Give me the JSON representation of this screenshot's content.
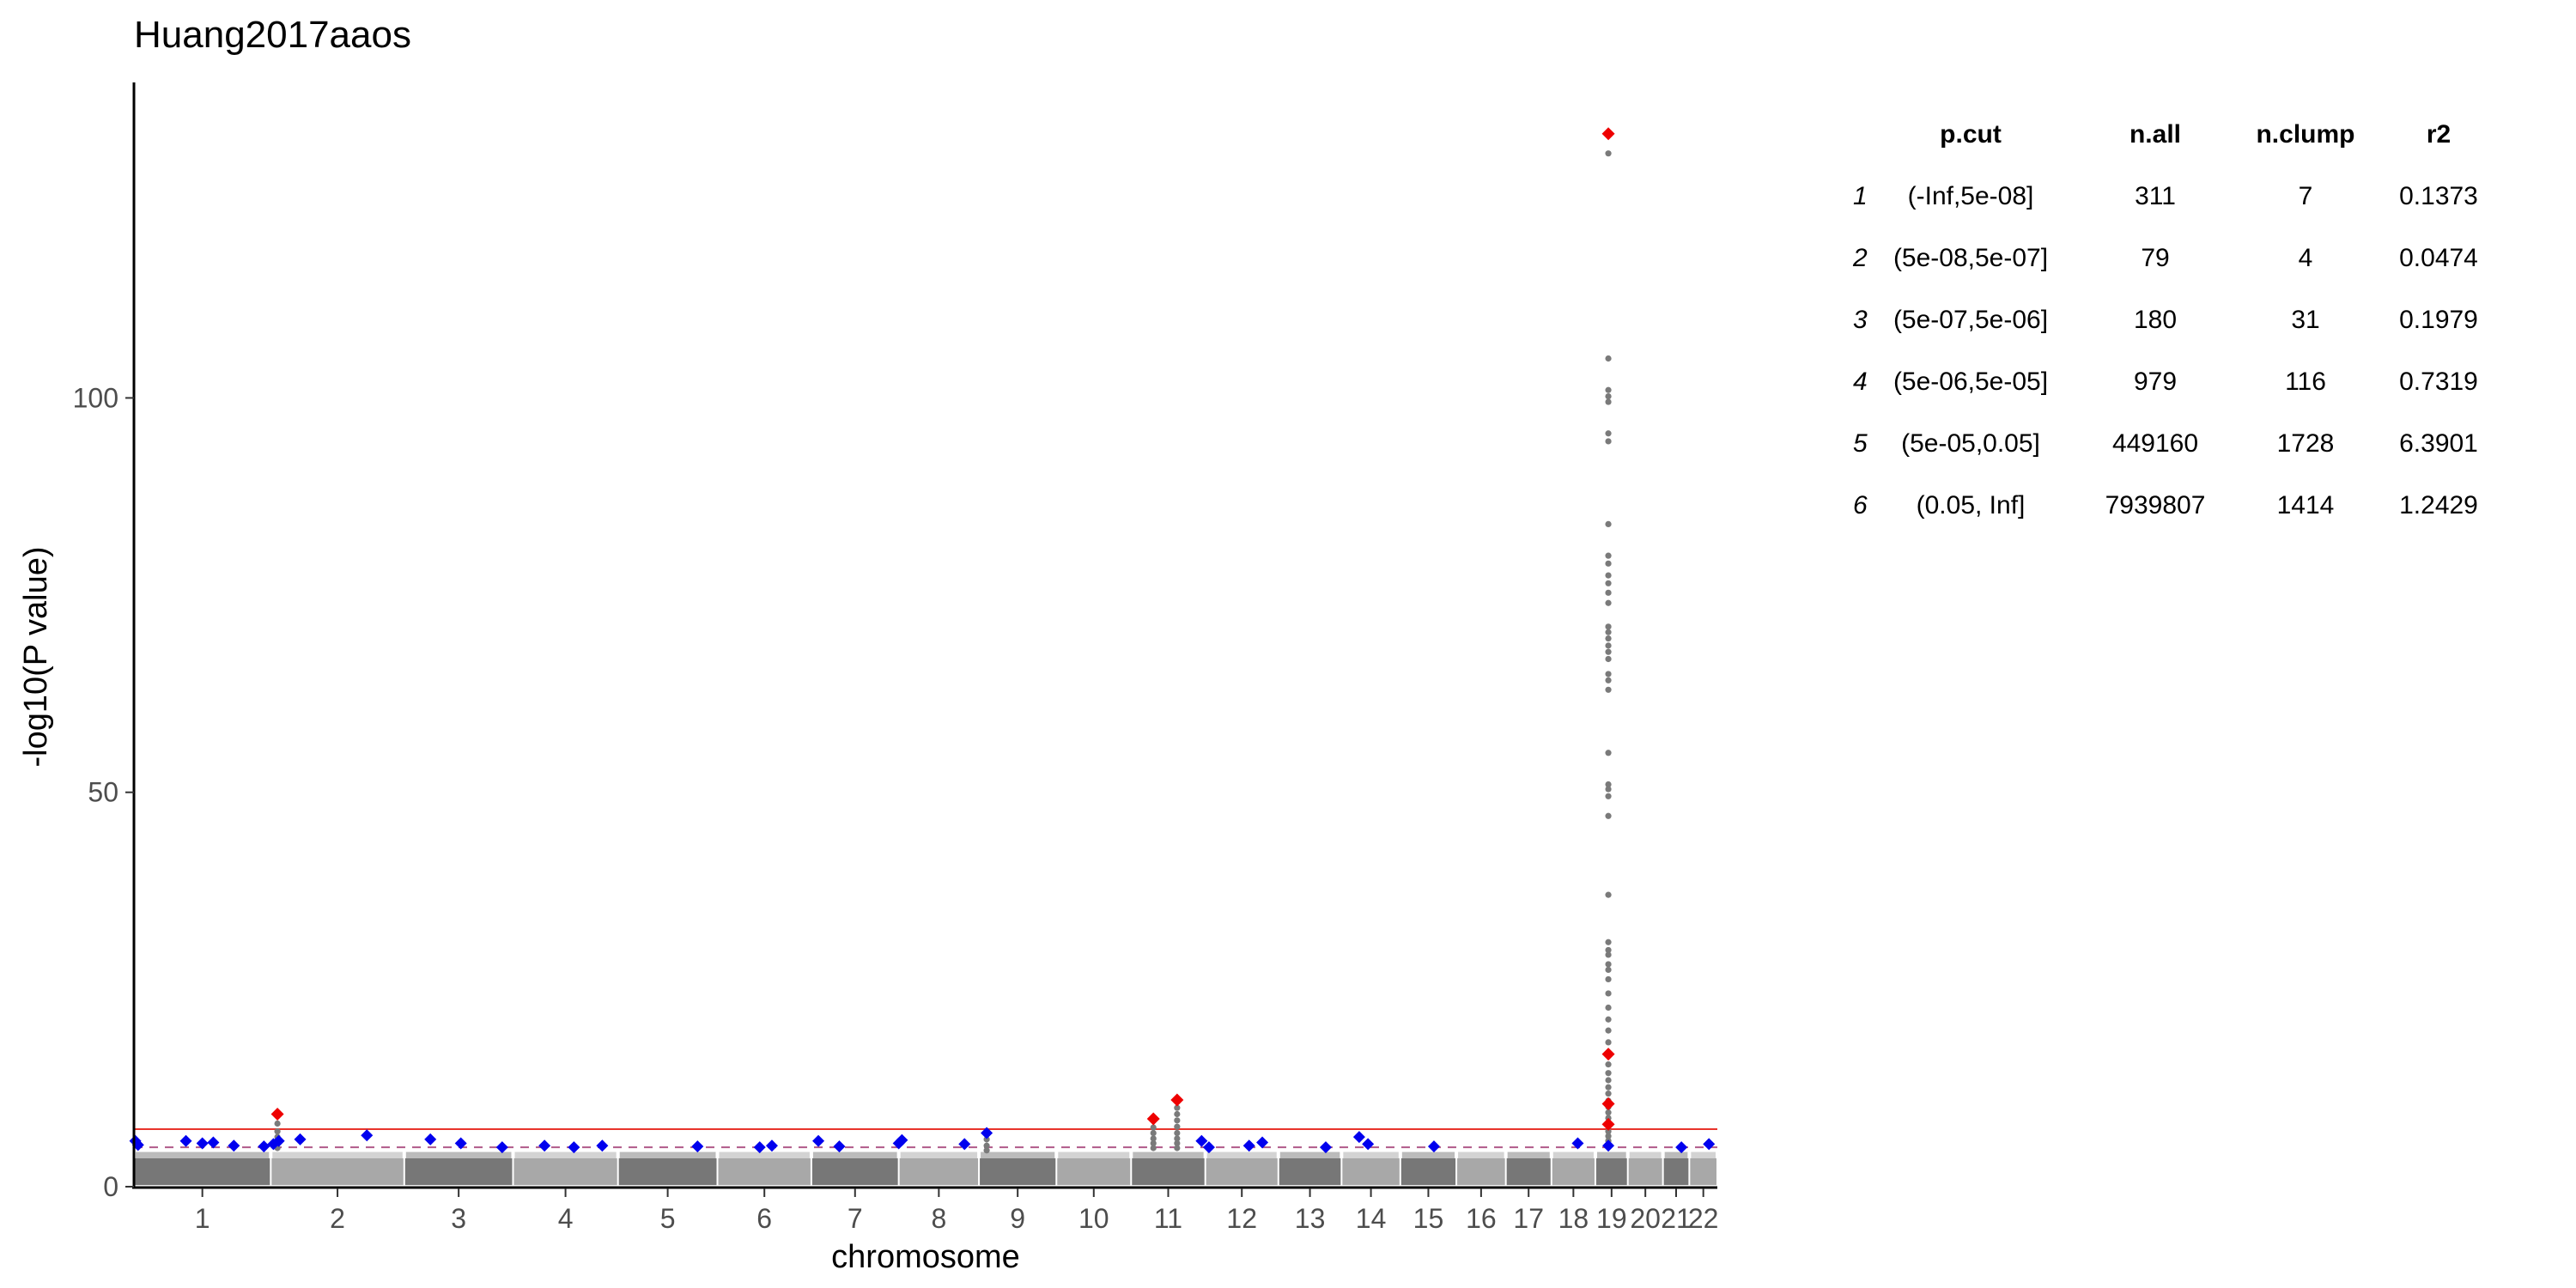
{
  "chart_data": {
    "type": "scatter",
    "title": "Huang2017aaos",
    "xlabel": "chromosome",
    "ylabel": "-log10(P value)",
    "ylim": [
      0,
      140
    ],
    "yticks": [
      0,
      50,
      100
    ],
    "chromosomes": [
      {
        "label": "1",
        "len": 249
      },
      {
        "label": "2",
        "len": 243
      },
      {
        "label": "3",
        "len": 198
      },
      {
        "label": "4",
        "len": 191
      },
      {
        "label": "5",
        "len": 181
      },
      {
        "label": "6",
        "len": 171
      },
      {
        "label": "7",
        "len": 159
      },
      {
        "label": "8",
        "len": 146
      },
      {
        "label": "9",
        "len": 141
      },
      {
        "label": "10",
        "len": 136
      },
      {
        "label": "11",
        "len": 135
      },
      {
        "label": "12",
        "len": 133
      },
      {
        "label": "13",
        "len": 115
      },
      {
        "label": "14",
        "len": 107
      },
      {
        "label": "15",
        "len": 102
      },
      {
        "label": "16",
        "len": 90
      },
      {
        "label": "17",
        "len": 83
      },
      {
        "label": "18",
        "len": 80
      },
      {
        "label": "19",
        "len": 59
      },
      {
        "label": "20",
        "len": 64
      },
      {
        "label": "21",
        "len": 48
      },
      {
        "label": "22",
        "len": 51
      }
    ],
    "threshold_lines": [
      {
        "y": 7.3,
        "color": "#e8332b",
        "style": "solid"
      },
      {
        "y": 5.0,
        "color": "#b05a8a",
        "style": "dashed"
      }
    ],
    "highlight_red": [
      {
        "chr": "2",
        "pos": 0.05,
        "y": 9.2
      },
      {
        "chr": "11",
        "pos": 0.3,
        "y": 8.6
      },
      {
        "chr": "11",
        "pos": 0.62,
        "y": 11.0
      },
      {
        "chr": "19",
        "pos": 0.4,
        "y": 133.5
      },
      {
        "chr": "19",
        "pos": 0.4,
        "y": 16.8
      },
      {
        "chr": "19",
        "pos": 0.4,
        "y": 10.5
      },
      {
        "chr": "19",
        "pos": 0.4,
        "y": 7.9
      }
    ],
    "highlight_blue": [
      {
        "chr": "1",
        "pos": 0.01,
        "y": 5.8
      },
      {
        "chr": "1",
        "pos": 0.03,
        "y": 5.3
      },
      {
        "chr": "1",
        "pos": 0.38,
        "y": 5.8
      },
      {
        "chr": "1",
        "pos": 0.5,
        "y": 5.5
      },
      {
        "chr": "1",
        "pos": 0.58,
        "y": 5.6
      },
      {
        "chr": "1",
        "pos": 0.73,
        "y": 5.2
      },
      {
        "chr": "1",
        "pos": 0.95,
        "y": 5.1
      },
      {
        "chr": "2",
        "pos": 0.02,
        "y": 5.4
      },
      {
        "chr": "2",
        "pos": 0.06,
        "y": 5.8
      },
      {
        "chr": "2",
        "pos": 0.22,
        "y": 6.0
      },
      {
        "chr": "2",
        "pos": 0.72,
        "y": 6.5
      },
      {
        "chr": "3",
        "pos": 0.24,
        "y": 6.0
      },
      {
        "chr": "3",
        "pos": 0.52,
        "y": 5.5
      },
      {
        "chr": "3",
        "pos": 0.9,
        "y": 5.0
      },
      {
        "chr": "4",
        "pos": 0.3,
        "y": 5.2
      },
      {
        "chr": "4",
        "pos": 0.58,
        "y": 5.0
      },
      {
        "chr": "4",
        "pos": 0.85,
        "y": 5.2
      },
      {
        "chr": "5",
        "pos": 0.8,
        "y": 5.1
      },
      {
        "chr": "6",
        "pos": 0.45,
        "y": 5.0
      },
      {
        "chr": "6",
        "pos": 0.58,
        "y": 5.2
      },
      {
        "chr": "7",
        "pos": 0.08,
        "y": 5.8
      },
      {
        "chr": "7",
        "pos": 0.32,
        "y": 5.1
      },
      {
        "chr": "8",
        "pos": 0.0,
        "y": 5.5
      },
      {
        "chr": "8",
        "pos": 0.04,
        "y": 5.9
      },
      {
        "chr": "8",
        "pos": 0.82,
        "y": 5.4
      },
      {
        "chr": "9",
        "pos": 0.1,
        "y": 6.8
      },
      {
        "chr": "11",
        "pos": 0.95,
        "y": 5.8
      },
      {
        "chr": "12",
        "pos": 0.05,
        "y": 5.0
      },
      {
        "chr": "12",
        "pos": 0.6,
        "y": 5.2
      },
      {
        "chr": "12",
        "pos": 0.78,
        "y": 5.6
      },
      {
        "chr": "13",
        "pos": 0.75,
        "y": 5.0
      },
      {
        "chr": "14",
        "pos": 0.3,
        "y": 6.3
      },
      {
        "chr": "14",
        "pos": 0.45,
        "y": 5.4
      },
      {
        "chr": "15",
        "pos": 0.6,
        "y": 5.1
      },
      {
        "chr": "18",
        "pos": 0.6,
        "y": 5.5
      },
      {
        "chr": "19",
        "pos": 0.4,
        "y": 5.2
      },
      {
        "chr": "21",
        "pos": 0.7,
        "y": 5.0
      },
      {
        "chr": "22",
        "pos": 0.7,
        "y": 5.4
      }
    ],
    "grey_peaks": [
      {
        "chr": "19",
        "pos": 0.4,
        "values": [
          131,
          105,
          101,
          100.2,
          99.5,
          95.5,
          94.5,
          84,
          80,
          79,
          77.5,
          76.5,
          75.3,
          74,
          71,
          70.3,
          69.5,
          68.6,
          67.8,
          66.9,
          65,
          64.2,
          63,
          55,
          51,
          50.4,
          49.5,
          47,
          37,
          31,
          30,
          29.4,
          28.2,
          27.5,
          26.3,
          24.5,
          22.7,
          21.2,
          19.8,
          18.3,
          15.5,
          14.4,
          13.5,
          12.6,
          11.8,
          10.9,
          10.1,
          9.4,
          8.7,
          7.8,
          7.0,
          6.4,
          5.8
        ]
      },
      {
        "chr": "2",
        "pos": 0.05,
        "values": [
          8.0,
          7.0,
          6.3,
          5.6,
          4.9
        ]
      },
      {
        "chr": "11",
        "pos": 0.3,
        "values": [
          7.5,
          6.8,
          6.1,
          5.5,
          4.9
        ]
      },
      {
        "chr": "11",
        "pos": 0.62,
        "values": [
          10.0,
          9.2,
          8.4,
          7.6,
          6.8,
          6.1,
          5.5,
          4.9
        ]
      },
      {
        "chr": "9",
        "pos": 0.1,
        "values": [
          6.0,
          5.2,
          4.6
        ]
      }
    ]
  },
  "table": {
    "columns": [
      "p.cut",
      "n.all",
      "n.clump",
      "r2"
    ],
    "rows": [
      {
        "id": "1",
        "p_cut": "(-Inf,5e-08]",
        "n_all": "311",
        "n_clump": "7",
        "r2": "0.1373"
      },
      {
        "id": "2",
        "p_cut": "(5e-08,5e-07]",
        "n_all": "79",
        "n_clump": "4",
        "r2": "0.0474"
      },
      {
        "id": "3",
        "p_cut": "(5e-07,5e-06]",
        "n_all": "180",
        "n_clump": "31",
        "r2": "0.1979"
      },
      {
        "id": "4",
        "p_cut": "(5e-06,5e-05]",
        "n_all": "979",
        "n_clump": "116",
        "r2": "0.7319"
      },
      {
        "id": "5",
        "p_cut": "(5e-05,0.05]",
        "n_all": "449160",
        "n_clump": "1728",
        "r2": "6.3901"
      },
      {
        "id": "6",
        "p_cut": "(0.05, Inf]",
        "n_all": "7939807",
        "n_clump": "1414",
        "r2": "1.2429"
      }
    ]
  }
}
